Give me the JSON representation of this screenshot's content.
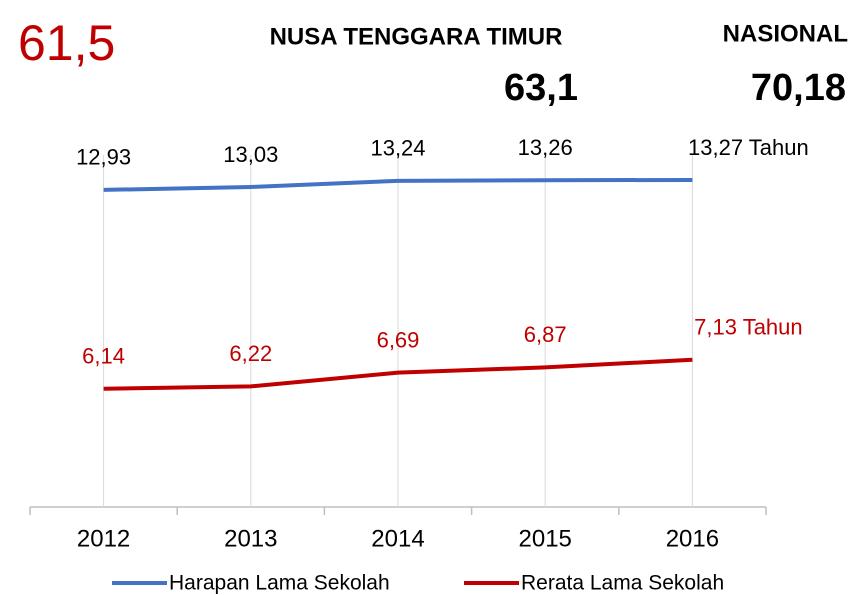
{
  "chart_data": {
    "type": "line",
    "annotations": [
      "61,5",
      "NUSA TENGGARA TIMUR",
      "63,1",
      "NASIONAL",
      "70,18"
    ],
    "categories": [
      "2012",
      "2013",
      "2014",
      "2015",
      "2016"
    ],
    "series": [
      {
        "name": "Harapan Lama Sekolah",
        "color": "#4472c4",
        "values": [
          12.93,
          13.03,
          13.24,
          13.26,
          13.27
        ],
        "value_labels": [
          "12,93",
          "13,03",
          "13,24",
          "13,26",
          "13,27 Tahun"
        ]
      },
      {
        "name": "Rerata Lama Sekolah",
        "color": "#c00000",
        "values": [
          6.14,
          6.22,
          6.69,
          6.87,
          7.13
        ],
        "value_labels": [
          "6,14",
          "6,22",
          "6,69",
          "6,87",
          "7,13 Tahun"
        ]
      }
    ],
    "ylim": [
      2,
      16
    ],
    "legend": "bottom"
  }
}
